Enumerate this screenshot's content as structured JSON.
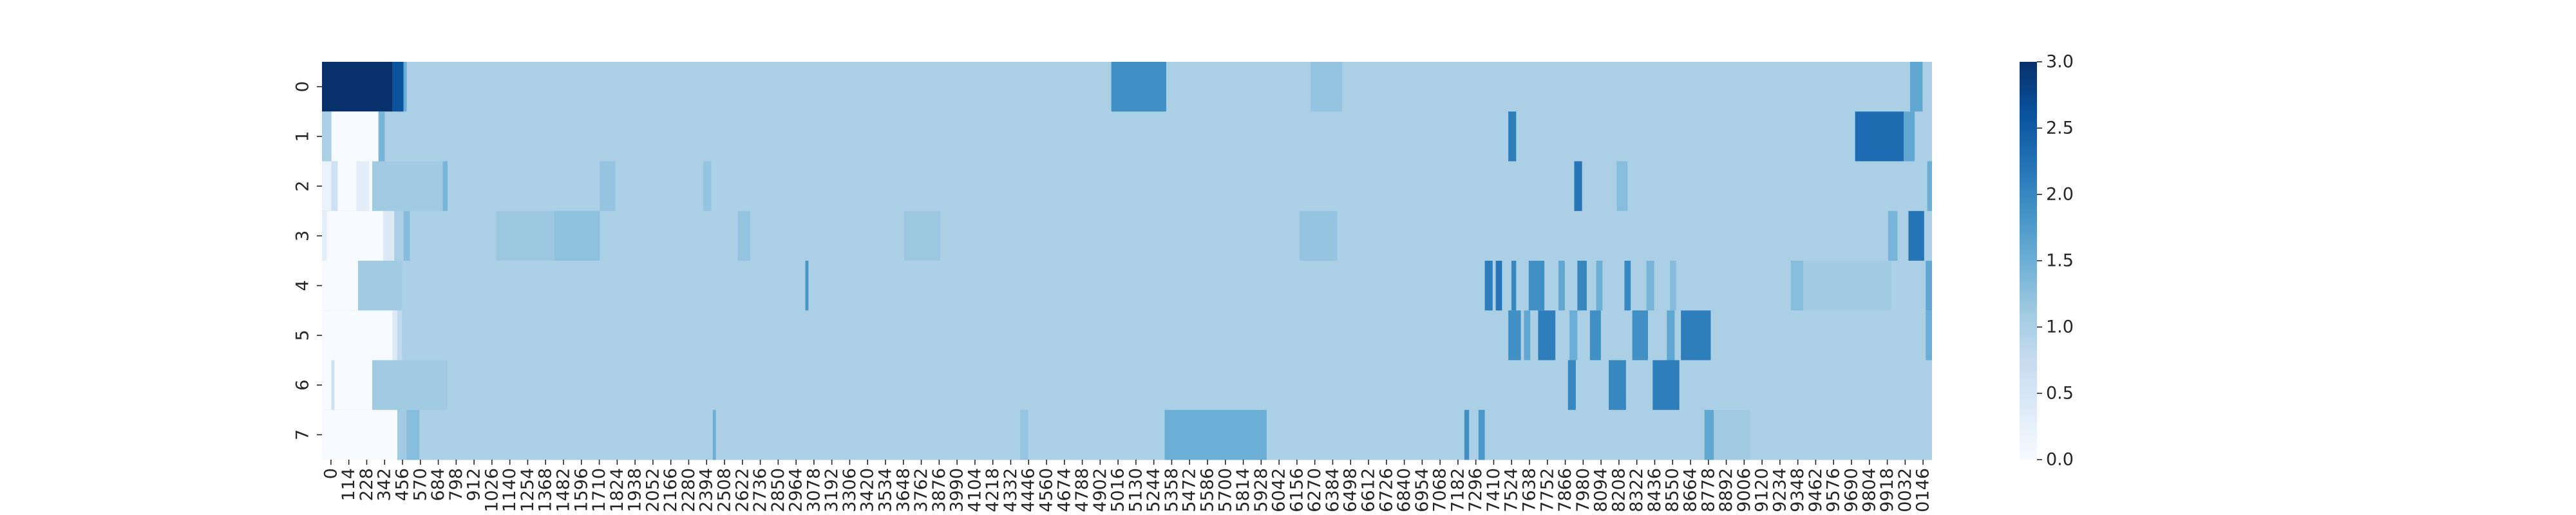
{
  "chart_data": {
    "type": "heatmap",
    "title": "",
    "xlabel": "",
    "ylabel": "",
    "rows": [
      "0",
      "1",
      "2",
      "3",
      "4",
      "5",
      "6",
      "7"
    ],
    "x_tick_labels": [
      "0",
      "114",
      "228",
      "342",
      "456",
      "570",
      "684",
      "798",
      "912",
      "1026",
      "1140",
      "1254",
      "1368",
      "1482",
      "1596",
      "1710",
      "1824",
      "1938",
      "2052",
      "2166",
      "2280",
      "2394",
      "2508",
      "2622",
      "2736",
      "2850",
      "2964",
      "3078",
      "3192",
      "3306",
      "3420",
      "3534",
      "3648",
      "3762",
      "3876",
      "3990",
      "4104",
      "4218",
      "4332",
      "4446",
      "4560",
      "4674",
      "4788",
      "4902",
      "5016",
      "5130",
      "5244",
      "5358",
      "5472",
      "5586",
      "5700",
      "5814",
      "5928",
      "6042",
      "6156",
      "6270",
      "6384",
      "6498",
      "6612",
      "6726",
      "6840",
      "6954",
      "7068",
      "7182",
      "7296",
      "7410",
      "7524",
      "7638",
      "7752",
      "7866",
      "7980",
      "8094",
      "8208",
      "8322",
      "8436",
      "8550",
      "8664",
      "8778",
      "8892",
      "9006",
      "9120",
      "9234",
      "9348",
      "9462",
      "9576",
      "9690",
      "9804",
      "9918",
      "0032",
      "0146"
    ],
    "x_range": [
      0,
      10260
    ],
    "value_range": [
      0.0,
      3.0
    ],
    "baseline_value": 1.0,
    "colormap": "Blues",
    "colorbar": {
      "ticks": [
        "0.0",
        "0.5",
        "1.0",
        "1.5",
        "2.0",
        "2.5",
        "3.0"
      ]
    },
    "segments": [
      [
        [
          0,
          450,
          3.0
        ],
        [
          450,
          520,
          2.6
        ],
        [
          520,
          540,
          1.5
        ],
        [
          5030,
          5380,
          1.9
        ],
        [
          6300,
          6500,
          1.2
        ],
        [
          10120,
          10200,
          1.6
        ]
      ],
      [
        [
          0,
          60,
          1.0
        ],
        [
          60,
          360,
          0.0
        ],
        [
          360,
          400,
          1.4
        ],
        [
          7560,
          7610,
          2.1
        ],
        [
          9770,
          10080,
          2.3
        ],
        [
          10080,
          10150,
          1.6
        ]
      ],
      [
        [
          0,
          60,
          0.2
        ],
        [
          60,
          100,
          0.6
        ],
        [
          100,
          220,
          0.0
        ],
        [
          220,
          300,
          0.3
        ],
        [
          300,
          320,
          0.0
        ],
        [
          320,
          790,
          1.1
        ],
        [
          770,
          800,
          1.4
        ],
        [
          1770,
          1870,
          1.2
        ],
        [
          2430,
          2480,
          1.2
        ],
        [
          7980,
          8030,
          2.2
        ],
        [
          8250,
          8320,
          1.3
        ],
        [
          10230,
          10260,
          1.5
        ]
      ],
      [
        [
          0,
          30,
          0.3
        ],
        [
          30,
          390,
          0.0
        ],
        [
          390,
          460,
          0.4
        ],
        [
          520,
          560,
          1.3
        ],
        [
          1110,
          1480,
          1.15
        ],
        [
          1480,
          1770,
          1.25
        ],
        [
          2650,
          2730,
          1.2
        ],
        [
          3710,
          3940,
          1.15
        ],
        [
          6230,
          6470,
          1.2
        ],
        [
          9980,
          10040,
          1.4
        ],
        [
          10110,
          10210,
          2.2
        ]
      ],
      [
        [
          0,
          230,
          0.0
        ],
        [
          230,
          510,
          1.1
        ],
        [
          3080,
          3100,
          1.8
        ],
        [
          7410,
          7460,
          2.1
        ],
        [
          7480,
          7520,
          2.2
        ],
        [
          7580,
          7610,
          2.0
        ],
        [
          7690,
          7790,
          1.9
        ],
        [
          7880,
          7920,
          1.6
        ],
        [
          8000,
          8060,
          2.0
        ],
        [
          8120,
          8160,
          1.5
        ],
        [
          8300,
          8340,
          2.0
        ],
        [
          8440,
          8490,
          1.4
        ],
        [
          8590,
          8630,
          1.3
        ],
        [
          9360,
          9440,
          1.3
        ],
        [
          9440,
          10000,
          1.1
        ],
        [
          10220,
          10260,
          1.6
        ]
      ],
      [
        [
          0,
          450,
          0.0
        ],
        [
          450,
          480,
          0.4
        ],
        [
          480,
          510,
          0.8
        ],
        [
          7560,
          7640,
          1.9
        ],
        [
          7660,
          7700,
          1.6
        ],
        [
          7750,
          7860,
          2.1
        ],
        [
          7950,
          8000,
          1.5
        ],
        [
          8080,
          8150,
          1.9
        ],
        [
          8350,
          8450,
          1.9
        ],
        [
          8570,
          8620,
          1.6
        ],
        [
          8660,
          8850,
          2.1
        ],
        [
          10220,
          10260,
          1.5
        ]
      ],
      [
        [
          0,
          60,
          0.0
        ],
        [
          60,
          80,
          0.6
        ],
        [
          80,
          320,
          0.0
        ],
        [
          320,
          800,
          1.1
        ],
        [
          7940,
          7990,
          2.0
        ],
        [
          8200,
          8310,
          2.0
        ],
        [
          8480,
          8650,
          2.1
        ]
      ],
      [
        [
          0,
          480,
          0.0
        ],
        [
          480,
          540,
          1.1
        ],
        [
          540,
          620,
          1.3
        ],
        [
          2490,
          2510,
          1.5
        ],
        [
          4450,
          4500,
          1.2
        ],
        [
          5370,
          6020,
          1.5
        ],
        [
          7280,
          7310,
          1.9
        ],
        [
          7370,
          7410,
          1.8
        ],
        [
          8810,
          8870,
          1.6
        ],
        [
          8870,
          9100,
          1.1
        ]
      ]
    ]
  }
}
